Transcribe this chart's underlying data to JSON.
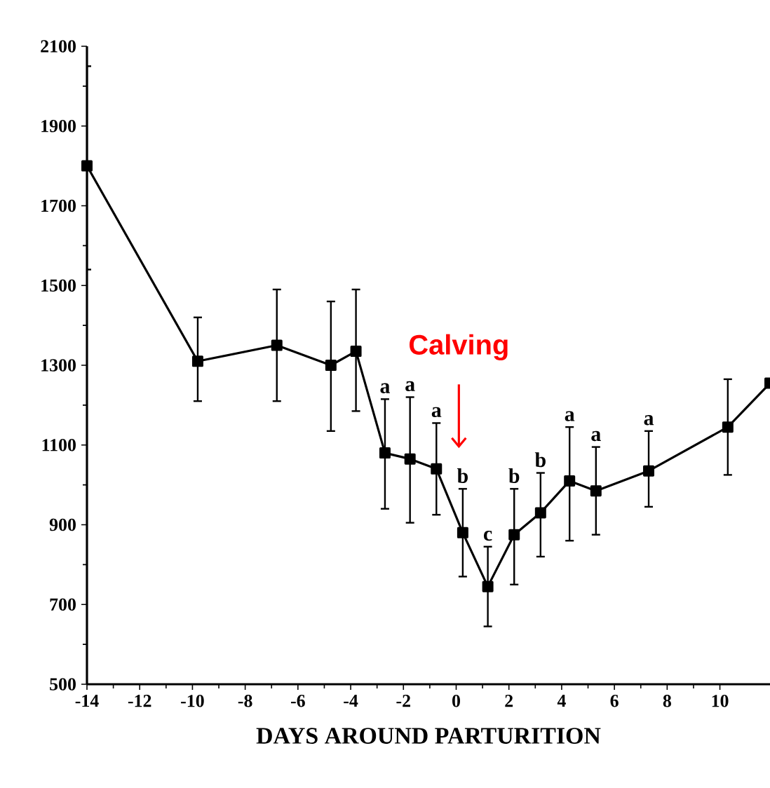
{
  "chart_data": {
    "type": "line",
    "xlabel": "DAYS AROUND PARTURITION",
    "x": [
      -14,
      -9.8,
      -6.8,
      -4.75,
      -3.8,
      -2.7,
      -1.75,
      -0.75,
      0.25,
      1.2,
      2.2,
      3.2,
      4.3,
      5.3,
      7.3,
      10.3,
      11.9
    ],
    "series": [
      {
        "color": "#000000",
        "values": [
          1800,
          1310,
          1350,
          1300,
          1335,
          1080,
          1065,
          1040,
          880,
          745,
          875,
          930,
          1010,
          985,
          1035,
          1145,
          1255
        ],
        "errors": [
          [
            1540,
            2050
          ],
          [
            1210,
            1420
          ],
          [
            1210,
            1490
          ],
          [
            1135,
            1460
          ],
          [
            1185,
            1490
          ],
          [
            940,
            1215
          ],
          [
            905,
            1220
          ],
          [
            925,
            1155
          ],
          [
            770,
            990
          ],
          [
            645,
            845
          ],
          [
            750,
            990
          ],
          [
            820,
            1030
          ],
          [
            860,
            1145
          ],
          [
            875,
            1095
          ],
          [
            945,
            1135
          ],
          [
            1025,
            1265
          ],
          null
        ]
      }
    ],
    "marker": "square",
    "line_style": "solid",
    "xlim": [
      -14,
      11.9
    ],
    "ylim": [
      500,
      2100
    ],
    "xticks": [
      -14,
      -12,
      -10,
      -8,
      -6,
      -4,
      -2,
      0,
      2,
      4,
      6,
      8,
      10
    ],
    "yticks": [
      500,
      700,
      900,
      1100,
      1300,
      1500,
      1700,
      1900,
      2100
    ],
    "annotations": [
      {
        "text": "a",
        "x": -2.7,
        "y": 1215
      },
      {
        "text": "a",
        "x": -1.75,
        "y": 1220
      },
      {
        "text": "a",
        "x": -0.75,
        "y": 1155
      },
      {
        "text": "b",
        "x": 0.25,
        "y": 990
      },
      {
        "text": "c",
        "x": 1.2,
        "y": 845
      },
      {
        "text": "b",
        "x": 2.2,
        "y": 990
      },
      {
        "text": "b",
        "x": 3.2,
        "y": 1030
      },
      {
        "text": "a",
        "x": 4.3,
        "y": 1145
      },
      {
        "text": "a",
        "x": 5.3,
        "y": 1095
      },
      {
        "text": "a",
        "x": 7.3,
        "y": 1135
      },
      "Calving"
    ]
  }
}
